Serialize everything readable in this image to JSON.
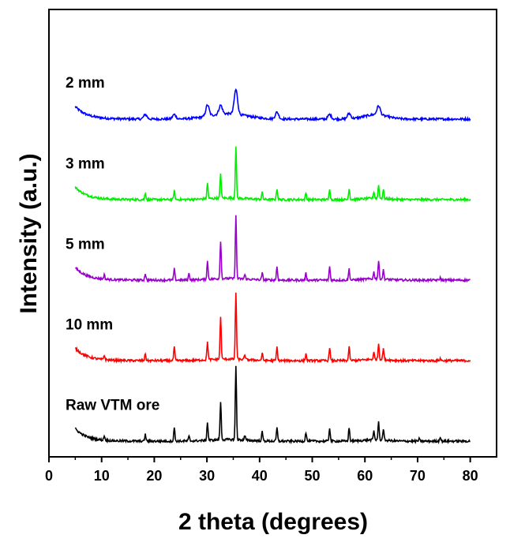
{
  "chart_data": {
    "type": "line",
    "xlabel": "2 theta (degrees)",
    "ylabel": "Intensity (a.u.)",
    "xlim": [
      0,
      85
    ],
    "x_ticks": [
      "0",
      "10",
      "20",
      "30",
      "40",
      "50",
      "60",
      "70",
      "80"
    ],
    "y_ticks_labeled": false,
    "stacked_offset": true,
    "peaks_2theta": [
      10.5,
      18.3,
      23.8,
      26.6,
      30.1,
      32.6,
      35.5,
      37.2,
      40.5,
      43.3,
      48.8,
      53.3,
      57.0,
      61.7,
      62.6,
      63.5,
      70.3,
      74.3
    ],
    "series": [
      {
        "name": "2 mm",
        "color": "#0000ff",
        "baseline_level": 0.755,
        "peak_heights": [
          0.0,
          0.01,
          0.01,
          0.0,
          0.025,
          0.02,
          0.055,
          0.0,
          0.0,
          0.015,
          0.0,
          0.01,
          0.012,
          0.0,
          0.02,
          0.0,
          0.0,
          0.0
        ]
      },
      {
        "name": "3 mm",
        "color": "#00ee00",
        "baseline_level": 0.575,
        "peak_heights": [
          0.0,
          0.015,
          0.02,
          0.0,
          0.035,
          0.055,
          0.115,
          0.0,
          0.015,
          0.025,
          0.015,
          0.025,
          0.025,
          0.015,
          0.03,
          0.02,
          0.0,
          0.0
        ]
      },
      {
        "name": "5 mm",
        "color": "#9900cc",
        "baseline_level": 0.395,
        "peak_heights": [
          0.01,
          0.015,
          0.025,
          0.015,
          0.04,
          0.085,
          0.14,
          0.01,
          0.015,
          0.03,
          0.015,
          0.03,
          0.025,
          0.015,
          0.04,
          0.02,
          0.0,
          0.005
        ]
      },
      {
        "name": "10 mm",
        "color": "#ff0000",
        "baseline_level": 0.215,
        "peak_heights": [
          0.01,
          0.015,
          0.03,
          0.0,
          0.04,
          0.095,
          0.15,
          0.01,
          0.015,
          0.03,
          0.015,
          0.03,
          0.03,
          0.015,
          0.035,
          0.025,
          0.0,
          0.005
        ]
      },
      {
        "name": "Raw VTM ore",
        "color": "#000000",
        "baseline_level": 0.035,
        "peak_heights": [
          0.01,
          0.015,
          0.03,
          0.01,
          0.04,
          0.085,
          0.165,
          0.01,
          0.02,
          0.03,
          0.02,
          0.03,
          0.03,
          0.02,
          0.04,
          0.025,
          0.005,
          0.01
        ]
      }
    ],
    "grid": false,
    "legend": "none"
  }
}
